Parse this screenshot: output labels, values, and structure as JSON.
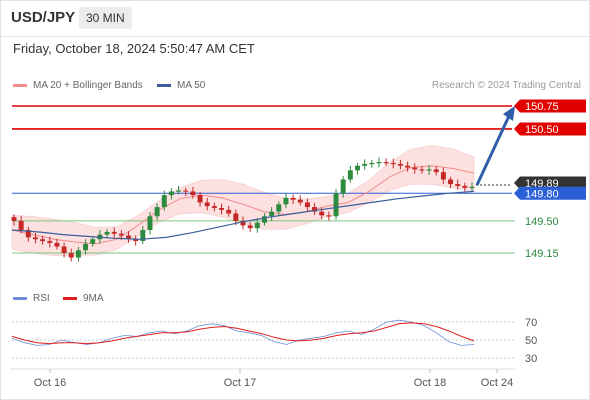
{
  "header": {
    "symbol": "USD/JPY",
    "interval": "30 MIN",
    "datetime": "Friday, October 18, 2024 5:50:47 AM CET"
  },
  "legend": {
    "items": [
      {
        "label": "MA 20 + Bollinger Bands",
        "color": "#f28b8b"
      },
      {
        "label": "MA 50",
        "color": "#3a5f9b"
      }
    ],
    "credit": "Research © 2024 Trading Central"
  },
  "rsi_legend": {
    "items": [
      {
        "label": "RSI",
        "color": "#6b8fd6"
      },
      {
        "label": "9MA",
        "color": "#e02020"
      }
    ]
  },
  "levels": [
    {
      "label": "150.75",
      "value": 150.75,
      "style": "red-box"
    },
    {
      "label": "150.50",
      "value": 150.5,
      "style": "red-box"
    },
    {
      "label": "149.89",
      "value": 149.89,
      "style": "dark-box"
    },
    {
      "label": "149.80",
      "value": 149.8,
      "style": "blue-box"
    },
    {
      "label": "149.50",
      "value": 149.5,
      "style": "green-text"
    },
    {
      "label": "149.15",
      "value": 149.15,
      "style": "green-text"
    }
  ],
  "rsi_ticks": [
    "70",
    "50",
    "30"
  ],
  "x_ticks": [
    "Oct 16",
    "Oct 17",
    "Oct 18",
    "Oct 24"
  ],
  "colors": {
    "up": "#2e8b3e",
    "down": "#c62828",
    "resistance": "#e00000",
    "pivot": "#2b5fd8",
    "support": "#7bc47b",
    "arrow": "#2f5ea8",
    "band": "#fde0e0"
  },
  "chart_data": {
    "type": "candlestick",
    "instrument": "USD/JPY",
    "timeframe": "30 MIN",
    "price_ylim": [
      148.95,
      150.85
    ],
    "price_path": [
      149.5,
      149.4,
      149.32,
      149.3,
      149.28,
      149.26,
      149.22,
      149.15,
      149.1,
      149.18,
      149.25,
      149.3,
      149.35,
      149.38,
      149.36,
      149.34,
      149.3,
      149.28,
      149.4,
      149.55,
      149.65,
      149.78,
      149.82,
      149.83,
      149.82,
      149.78,
      149.7,
      149.66,
      149.64,
      149.62,
      149.58,
      149.5,
      149.45,
      149.42,
      149.48,
      149.55,
      149.6,
      149.68,
      149.75,
      149.73,
      149.7,
      149.65,
      149.6,
      149.56,
      149.55,
      149.8,
      149.95,
      150.05,
      150.1,
      150.12,
      150.13,
      150.14,
      150.13,
      150.12,
      150.1,
      150.08,
      150.06,
      150.05,
      150.06,
      150.03,
      149.95,
      149.9,
      149.88,
      149.86,
      149.87
    ],
    "ma50": [
      149.4,
      149.38,
      149.35,
      149.33,
      149.31,
      149.3,
      149.32,
      149.37,
      149.43,
      149.49,
      149.54,
      149.58,
      149.62,
      149.66,
      149.7,
      149.74,
      149.77,
      149.8,
      149.82
    ],
    "ma20": [
      149.4,
      149.35,
      149.3,
      149.27,
      149.25,
      149.3,
      149.45,
      149.62,
      149.74,
      149.78,
      149.75,
      149.68,
      149.6,
      149.57,
      149.6,
      149.66,
      149.7,
      149.82,
      149.98,
      150.08,
      150.1,
      150.07,
      150.02
    ],
    "projection": {
      "from": 149.89,
      "to": 150.75
    },
    "rsi_ylim": [
      20,
      80
    ],
    "rsi": [
      52,
      47,
      44,
      45,
      50,
      47,
      45,
      47,
      52,
      55,
      54,
      58,
      60,
      57,
      60,
      66,
      68,
      66,
      60,
      58,
      55,
      48,
      45,
      50,
      52,
      54,
      58,
      60,
      56,
      62,
      70,
      72,
      70,
      66,
      58,
      48,
      44,
      45
    ],
    "rsi_ma9": [
      54,
      50,
      47,
      46,
      47,
      47,
      46,
      47,
      49,
      52,
      54,
      56,
      58,
      58,
      59,
      62,
      64,
      65,
      63,
      60,
      57,
      53,
      50,
      49,
      50,
      52,
      55,
      57,
      58,
      60,
      64,
      68,
      69,
      68,
      65,
      60,
      54,
      49
    ],
    "x_labels": [
      "Oct 16",
      "Oct 17",
      "Oct 18",
      "Oct 24"
    ]
  }
}
